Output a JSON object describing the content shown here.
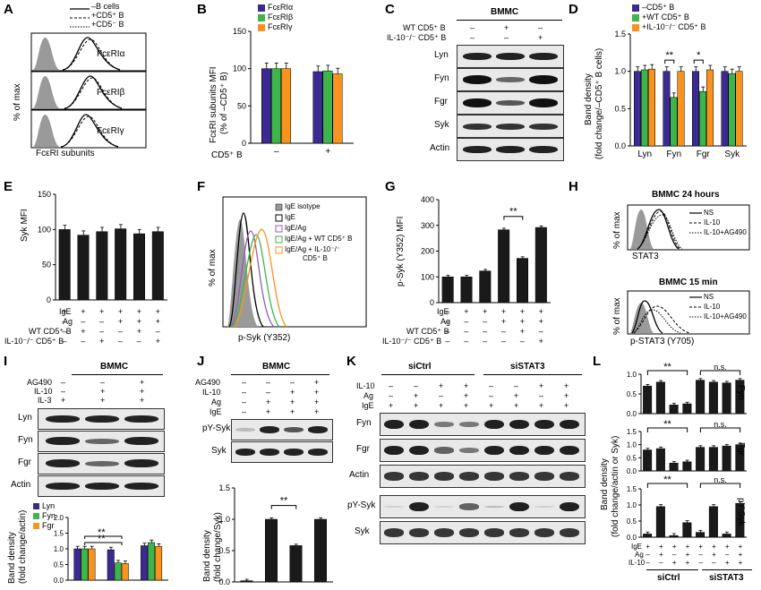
{
  "panels": {
    "A": "A",
    "B": "B",
    "C": "C",
    "D": "D",
    "E": "E",
    "F": "F",
    "G": "G",
    "H": "H",
    "I": "I",
    "J": "J",
    "K": "K",
    "L": "L"
  },
  "A": {
    "legend": [
      "–B cells",
      "+CD5⁺ B",
      "+CD5⁻ B"
    ],
    "sub": [
      "FcεRIα",
      "FcεRIβ",
      "FcεRIγ"
    ],
    "ylabel": "% of max",
    "xlabel": "FcεRI subunits"
  },
  "B": {
    "legend": [
      "FcεRIα",
      "FcεRIβ",
      "FcεRIγ"
    ],
    "ylabel1": "FcεRI subunits MFI",
    "ylabel2": "(% of –CD5⁺ B)",
    "xrow": "CD5⁺ B",
    "xvals": [
      "–",
      "+"
    ]
  },
  "C": {
    "title": "BMMC",
    "rows": [
      "WT CD5⁺ B",
      "IL-10⁻/⁻ CD5⁺ B"
    ],
    "signs": [
      [
        "–",
        "+",
        "–"
      ],
      [
        "–",
        "–",
        "+"
      ]
    ],
    "blots": [
      "Lyn",
      "Fyn",
      "Fgr",
      "Syk",
      "Actin"
    ]
  },
  "D": {
    "legend": [
      "–CD5⁺ B",
      "+WT CD5⁺ B",
      "+IL-10⁻/⁻ CD5⁺ B"
    ],
    "ylabel1": "Band density",
    "ylabel2": "(fold change/–CD5⁺ B cells)",
    "stars": [
      "**",
      "*"
    ]
  },
  "E": {
    "ylabel": "Syk MFI",
    "rows": [
      "IgE",
      "Ag",
      "WT CD5⁺ B",
      "IL-10⁻/⁻ CD5⁺ B"
    ],
    "signs": [
      [
        "+",
        "+",
        "+",
        "+",
        "+",
        "+"
      ],
      [
        "–",
        "–",
        "–",
        "+",
        "+",
        "+"
      ],
      [
        "–",
        "+",
        "–",
        "–",
        "+",
        "–"
      ],
      [
        "–",
        "–",
        "+",
        "–",
        "–",
        "+"
      ]
    ]
  },
  "F": {
    "legend": [
      "IgE isotype",
      "IgE",
      "IgE/Ag",
      "IgE/Ag + WT CD5⁺ B",
      "IgE/Ag + IL-10⁻/⁻",
      "CD5⁺ B"
    ],
    "ylabel": "% of max",
    "xlabel": "p-Syk (Y352)"
  },
  "G": {
    "ylabel": "p-Syk (Y352) MFI",
    "stars": "**",
    "rows": [
      "IgE",
      "Ag",
      "WT CD5⁺ B",
      "IL-10⁻/⁻ CD5⁺ B"
    ],
    "signs": [
      [
        "–",
        "+",
        "+",
        "+",
        "+",
        "+"
      ],
      [
        "–",
        "–",
        "–",
        "+",
        "+",
        "+"
      ],
      [
        "–",
        "–",
        "–",
        "–",
        "+",
        "–"
      ],
      [
        "–",
        "–",
        "–",
        "–",
        "–",
        "+"
      ]
    ]
  },
  "H": {
    "title1": "BMMC 24 hours",
    "title2": "BMMC 15 min",
    "legend": [
      "NS",
      "IL-10",
      "IL-10+AG490"
    ],
    "ylabel": "% of max",
    "xlabel1": "STAT3",
    "xlabel2": "p-STAT3 (Y705)"
  },
  "I": {
    "title": "BMMC",
    "rows": [
      "AG490",
      "IL-10",
      "IL-3"
    ],
    "signs": [
      [
        "–",
        "–",
        "+"
      ],
      [
        "–",
        "+",
        "+"
      ],
      [
        "+",
        "+",
        "+"
      ]
    ],
    "blots": [
      "Lyn",
      "Fyn",
      "Fgr",
      "Actin"
    ],
    "legend": [
      "Lyn",
      "Fyn",
      "Fgr"
    ],
    "ylabel1": "Band density",
    "ylabel2": "(fold change/actin)",
    "stars": [
      "**",
      "**"
    ]
  },
  "J": {
    "title": "BMMC",
    "rows": [
      "AG490",
      "IL-10",
      "Ag",
      "IgE"
    ],
    "signs": [
      [
        "–",
        "–",
        "–",
        "+"
      ],
      [
        "–",
        "–",
        "+",
        "+"
      ],
      [
        "–",
        "+",
        "+",
        "+"
      ],
      [
        "–",
        "+",
        "+",
        "+"
      ]
    ],
    "blots": [
      "pY-Syk",
      "Syk"
    ],
    "ylabel1": "Band density",
    "ylabel2": "(fold change/Syk)",
    "stars": "**"
  },
  "K": {
    "groups": [
      "siCtrl",
      "siSTAT3"
    ],
    "rows": [
      "IL-10",
      "Ag",
      "IgE"
    ],
    "signs": [
      [
        "–",
        "–",
        "+",
        "+",
        "–",
        "–",
        "+",
        "+"
      ],
      [
        "–",
        "+",
        "–",
        "+",
        "–",
        "+",
        "–",
        "+"
      ],
      [
        "+",
        "+",
        "+",
        "+",
        "+",
        "+",
        "+",
        "+"
      ]
    ],
    "blots": [
      "Fyn",
      "Fgr",
      "Actin",
      "pY-Syk",
      "Syk"
    ]
  },
  "L": {
    "ylabel1": "Band density",
    "ylabel2": "(fold change/actin or Syk)",
    "right": [
      "Fyn",
      "Fgr",
      "pY-Syk"
    ],
    "stars": "**",
    "ns": "n.s.",
    "rows": [
      "IgE",
      "Ag",
      "IL-10"
    ],
    "signs": [
      [
        "+",
        "+",
        "+",
        "+",
        "+",
        "+",
        "+",
        "+"
      ],
      [
        "–",
        "+",
        "–",
        "+",
        "–",
        "+",
        "–",
        "+"
      ],
      [
        "–",
        "–",
        "+",
        "+",
        "–",
        "–",
        "+",
        "+"
      ]
    ],
    "groups": [
      "siCtrl",
      "siSTAT3"
    ]
  },
  "colors": {
    "purple": "#3b2a8f",
    "green": "#3db54a",
    "orange": "#f7931e",
    "black": "#1a1a1a",
    "grey": "#9a9a9a"
  },
  "chart_data": [
    {
      "type": "bar",
      "panel": "B",
      "categories": [
        "–",
        "+"
      ],
      "series": [
        {
          "name": "FcεRIα",
          "values": [
            100,
            96
          ]
        },
        {
          "name": "FcεRIβ",
          "values": [
            100,
            97
          ]
        },
        {
          "name": "FcεRIγ",
          "values": [
            100,
            93
          ]
        }
      ],
      "ylim": [
        0,
        150
      ],
      "yticks": [
        "0",
        "50",
        "100",
        "150"
      ]
    },
    {
      "type": "bar",
      "panel": "D",
      "categories": [
        "Lyn",
        "Fyn",
        "Fgr",
        "Syk"
      ],
      "series": [
        {
          "name": "–CD5⁺ B",
          "values": [
            1.0,
            1.0,
            1.0,
            1.0
          ]
        },
        {
          "name": "+WT CD5⁺ B",
          "values": [
            1.02,
            0.65,
            0.73,
            0.97
          ]
        },
        {
          "name": "+IL-10⁻/⁻ CD5⁺ B",
          "values": [
            1.03,
            1.0,
            1.02,
            1.0
          ]
        }
      ],
      "ylim": [
        0,
        1.5
      ],
      "yticks": [
        "0.0",
        "0.5",
        "1.0",
        "1.5"
      ]
    },
    {
      "type": "bar",
      "panel": "E",
      "categories": [
        "1",
        "2",
        "3",
        "4",
        "5",
        "6"
      ],
      "values": [
        100,
        92,
        97,
        101,
        94,
        97
      ],
      "ylim": [
        0,
        150
      ],
      "yticks": [
        "0",
        "50",
        "100",
        "150"
      ]
    },
    {
      "type": "bar",
      "panel": "G",
      "categories": [
        "1",
        "2",
        "3",
        "4",
        "5",
        "6"
      ],
      "values": [
        100,
        100,
        123,
        283,
        172,
        292
      ],
      "ylim": [
        0,
        400
      ],
      "yticks": [
        "0",
        "100",
        "200",
        "300",
        "400"
      ]
    },
    {
      "type": "bar",
      "panel": "I",
      "categories": [
        "1",
        "2",
        "3"
      ],
      "series": [
        {
          "name": "Lyn",
          "values": [
            1.0,
            0.97,
            1.1
          ]
        },
        {
          "name": "Fyn",
          "values": [
            1.0,
            0.55,
            1.2
          ]
        },
        {
          "name": "Fgr",
          "values": [
            1.0,
            0.53,
            1.08
          ]
        }
      ],
      "ylim": [
        0,
        2.0
      ],
      "yticks": [
        "0.0",
        "0.5",
        "1.0",
        "1.5",
        "2.0"
      ]
    },
    {
      "type": "bar",
      "panel": "J",
      "categories": [
        "1",
        "2",
        "3",
        "4"
      ],
      "values": [
        0.02,
        1.0,
        0.58,
        1.0
      ],
      "ylim": [
        0,
        1.5
      ],
      "yticks": [
        "0.0",
        "0.5",
        "1.0",
        "1.5"
      ]
    },
    {
      "type": "bar",
      "panel": "L-Fyn",
      "categories": [
        "1",
        "2",
        "3",
        "4",
        "5",
        "6",
        "7",
        "8"
      ],
      "values": [
        0.7,
        0.8,
        0.22,
        0.25,
        0.85,
        0.8,
        0.78,
        0.85
      ],
      "ylim": [
        0,
        1.0
      ],
      "yticks": [
        "0.0",
        "0.5",
        "1.0"
      ]
    },
    {
      "type": "bar",
      "panel": "L-Fgr",
      "categories": [
        "1",
        "2",
        "3",
        "4",
        "5",
        "6",
        "7",
        "8"
      ],
      "values": [
        0.8,
        0.85,
        0.3,
        0.35,
        0.9,
        0.9,
        0.95,
        1.0
      ],
      "ylim": [
        0,
        1.5
      ],
      "yticks": [
        "0.0",
        "0.5",
        "1.0",
        "1.5"
      ]
    },
    {
      "type": "bar",
      "panel": "L-pY-Syk",
      "categories": [
        "1",
        "2",
        "3",
        "4",
        "5",
        "6",
        "7",
        "8"
      ],
      "values": [
        0.1,
        0.95,
        0.05,
        0.45,
        0.15,
        0.95,
        0.1,
        1.05
      ],
      "ylim": [
        0,
        1.5
      ],
      "yticks": [
        "0.0",
        "0.5",
        "1.0",
        "1.5"
      ]
    }
  ]
}
